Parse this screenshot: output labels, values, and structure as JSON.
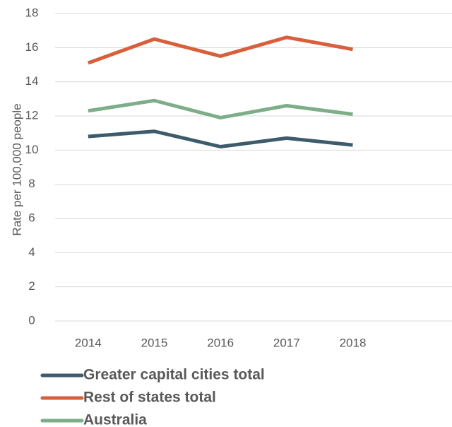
{
  "chart_data": {
    "type": "line",
    "y_label": "Rate per 100,000 people",
    "categories": [
      "2014",
      "2015",
      "2016",
      "2017",
      "2018",
      null
    ],
    "series": [
      {
        "name": "Greater capital cities total",
        "color": "#3e5b6c",
        "values": [
          10.8,
          11.1,
          10.2,
          10.7,
          10.3,
          null
        ]
      },
      {
        "name": "Rest of states total",
        "color": "#d95f3b",
        "values": [
          15.1,
          16.5,
          15.5,
          16.6,
          15.9,
          null
        ]
      },
      {
        "name": "Australia",
        "color": "#7dae89",
        "values": [
          12.3,
          12.9,
          11.9,
          12.6,
          12.1,
          null
        ]
      }
    ],
    "ylim": [
      0,
      18
    ],
    "yticks": [
      0,
      2,
      4,
      6,
      8,
      10,
      12,
      14,
      16,
      18
    ],
    "grid": true
  }
}
